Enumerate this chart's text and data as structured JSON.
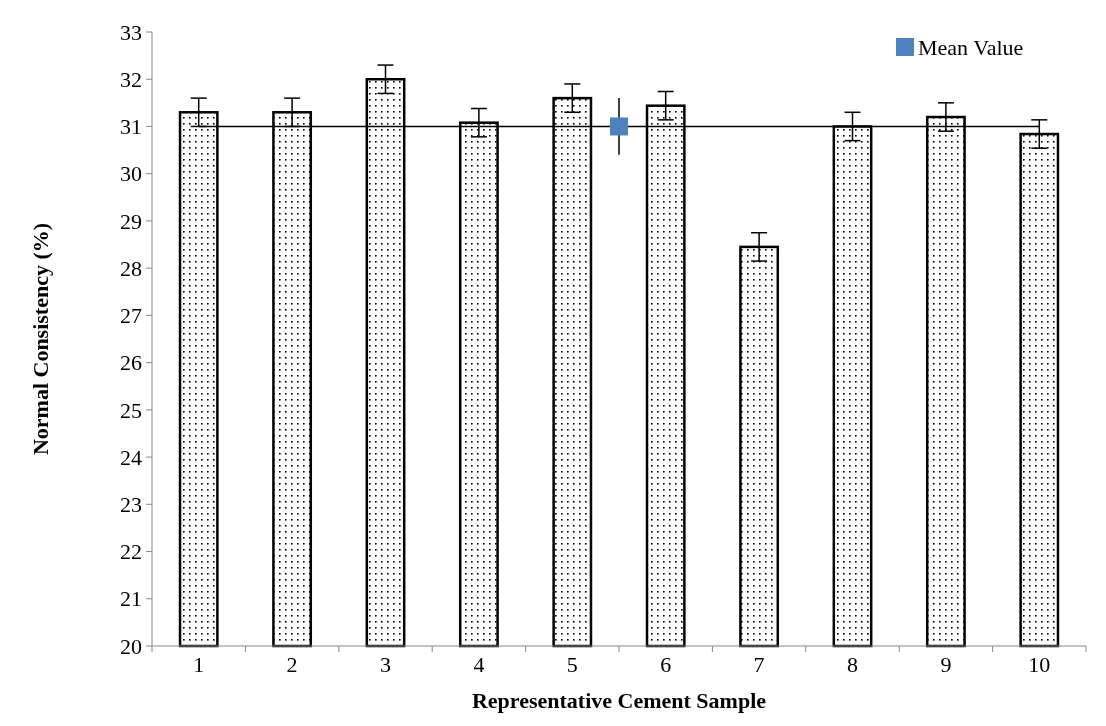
{
  "chart_data": {
    "type": "bar",
    "xlabel": "Representative Cement Sample",
    "ylabel": "Normal Consistency (%)",
    "x": [
      1,
      2,
      3,
      4,
      5,
      6,
      7,
      8,
      9,
      10
    ],
    "xlim": [
      0.5,
      10.5
    ],
    "xticks": [
      1,
      2,
      3,
      4,
      5,
      6,
      7,
      8,
      9,
      10
    ],
    "ylim": [
      20,
      33
    ],
    "yticks": [
      20,
      21,
      22,
      23,
      24,
      25,
      26,
      27,
      28,
      29,
      30,
      31,
      32,
      33
    ],
    "series": [
      {
        "color": "#000000",
        "values": [
          31.3,
          31.3,
          32.0,
          31.08,
          31.6,
          31.44,
          28.45,
          31.0,
          31.2,
          30.84
        ],
        "errors": [
          0.3,
          0.3,
          0.3,
          0.3,
          0.3,
          0.3,
          0.3,
          0.3,
          0.3,
          0.3
        ]
      },
      {
        "type": "line",
        "color": "#000000",
        "x": [
          1,
          10
        ],
        "values": [
          31,
          31
        ]
      },
      {
        "type": "scatter",
        "name": "Mean Value",
        "color": "#4f81bd",
        "marker": "square",
        "x": [
          5.5
        ],
        "values": [
          31
        ],
        "errors": [
          0.6
        ]
      }
    ],
    "legend": "top right",
    "grid": false
  }
}
